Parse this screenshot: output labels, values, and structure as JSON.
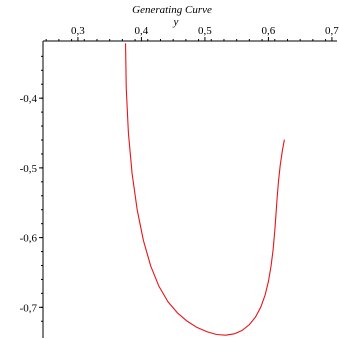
{
  "chart_data": {
    "type": "line",
    "title": "Generating Curve",
    "xlabel": "y",
    "ylabel": "",
    "xlim": [
      0.245,
      0.708
    ],
    "ylim": [
      -0.744,
      -0.318
    ],
    "x_ticks": [
      {
        "value": 0.3,
        "label": "0,3"
      },
      {
        "value": 0.4,
        "label": "0,4"
      },
      {
        "value": 0.5,
        "label": "0,5"
      },
      {
        "value": 0.6,
        "label": "0,6"
      },
      {
        "value": 0.7,
        "label": "0,7"
      }
    ],
    "y_ticks": [
      {
        "value": -0.4,
        "label": "-0,4"
      },
      {
        "value": -0.5,
        "label": "-0,5"
      },
      {
        "value": -0.6,
        "label": "-0,6"
      },
      {
        "value": -0.7,
        "label": "-0,7"
      }
    ],
    "grid": false,
    "x_axis_position": "top",
    "series": [
      {
        "color": "#e8131a",
        "x": [
          0.375,
          0.3761,
          0.3795,
          0.3853,
          0.3933,
          0.4031,
          0.4147,
          0.4277,
          0.4418,
          0.4567,
          0.4722,
          0.4878,
          0.5033,
          0.5184,
          0.5328,
          0.5463,
          0.5587,
          0.5698,
          0.5796,
          0.5878,
          0.5946,
          0.6,
          0.6041,
          0.6073,
          0.6098,
          0.6118,
          0.6137,
          0.6159,
          0.6186,
          0.6222,
          0.625
        ],
        "y": [
          -0.322,
          -0.386,
          -0.45,
          -0.508,
          -0.56,
          -0.604,
          -0.641,
          -0.67,
          -0.692,
          -0.708,
          -0.72,
          -0.729,
          -0.735,
          -0.739,
          -0.74,
          -0.738,
          -0.733,
          -0.725,
          -0.714,
          -0.7,
          -0.683,
          -0.663,
          -0.641,
          -0.618,
          -0.593,
          -0.568,
          -0.543,
          -0.519,
          -0.496,
          -0.474,
          -0.46
        ]
      }
    ]
  }
}
